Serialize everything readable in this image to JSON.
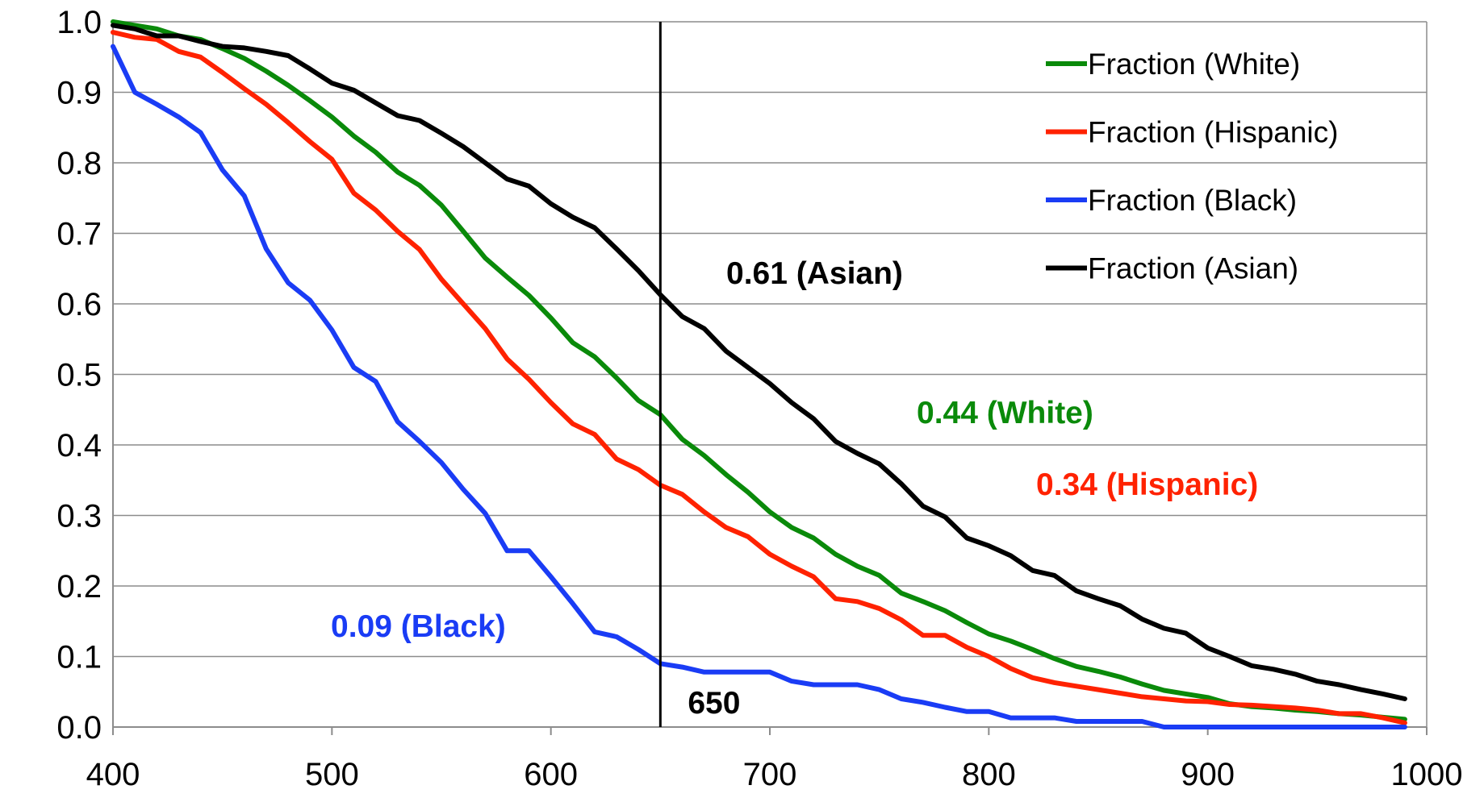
{
  "chart_data": {
    "type": "line",
    "x": [
      400,
      410,
      420,
      430,
      440,
      450,
      460,
      470,
      480,
      490,
      500,
      510,
      520,
      530,
      540,
      550,
      560,
      570,
      580,
      590,
      600,
      610,
      620,
      630,
      640,
      650,
      660,
      670,
      680,
      690,
      700,
      710,
      720,
      730,
      740,
      750,
      760,
      770,
      780,
      790,
      800,
      810,
      820,
      830,
      840,
      850,
      860,
      870,
      880,
      890,
      900,
      910,
      920,
      930,
      940,
      950,
      960,
      970,
      980,
      990
    ],
    "xlim": [
      400,
      1000
    ],
    "ylim": [
      0,
      1
    ],
    "x_ticks": [
      "400",
      "500",
      "600",
      "700",
      "800",
      "900",
      "1000"
    ],
    "y_ticks": [
      "0.0",
      "0.1",
      "0.2",
      "0.3",
      "0.4",
      "0.5",
      "0.6",
      "0.7",
      "0.8",
      "0.9",
      "1.0"
    ],
    "grid": "horizontal",
    "legend_position": "top-right",
    "series": [
      {
        "name": "Fraction (White)",
        "color": "#0a8a0a",
        "values": [
          1.0,
          0.995,
          0.99,
          0.98,
          0.975,
          0.962,
          0.948,
          0.93,
          0.91,
          0.888,
          0.865,
          0.838,
          0.815,
          0.787,
          0.768,
          0.74,
          0.703,
          0.665,
          0.638,
          0.612,
          0.58,
          0.545,
          0.525,
          0.495,
          0.463,
          0.443,
          0.408,
          0.385,
          0.358,
          0.333,
          0.305,
          0.283,
          0.268,
          0.245,
          0.228,
          0.215,
          0.19,
          0.178,
          0.165,
          0.148,
          0.132,
          0.122,
          0.11,
          0.097,
          0.086,
          0.079,
          0.071,
          0.061,
          0.052,
          0.047,
          0.042,
          0.033,
          0.029,
          0.027,
          0.024,
          0.022,
          0.019,
          0.017,
          0.014,
          0.011
        ]
      },
      {
        "name": "Fraction (Hispanic)",
        "color": "#ff2200",
        "values": [
          0.985,
          0.978,
          0.975,
          0.958,
          0.95,
          0.928,
          0.905,
          0.883,
          0.857,
          0.83,
          0.805,
          0.757,
          0.733,
          0.703,
          0.677,
          0.635,
          0.6,
          0.565,
          0.522,
          0.493,
          0.46,
          0.43,
          0.415,
          0.38,
          0.365,
          0.343,
          0.33,
          0.305,
          0.283,
          0.27,
          0.245,
          0.228,
          0.213,
          0.182,
          0.178,
          0.168,
          0.152,
          0.13,
          0.13,
          0.113,
          0.1,
          0.083,
          0.07,
          0.063,
          0.058,
          0.053,
          0.048,
          0.043,
          0.04,
          0.037,
          0.036,
          0.032,
          0.031,
          0.029,
          0.027,
          0.024,
          0.019,
          0.019,
          0.013,
          0.006
        ]
      },
      {
        "name": "Fraction (Black)",
        "color": "#1a3cf5",
        "values": [
          0.965,
          0.9,
          0.883,
          0.865,
          0.843,
          0.79,
          0.753,
          0.678,
          0.63,
          0.605,
          0.563,
          0.51,
          0.49,
          0.433,
          0.405,
          0.375,
          0.337,
          0.303,
          0.25,
          0.25,
          0.213,
          0.175,
          0.135,
          0.128,
          0.11,
          0.09,
          0.085,
          0.078,
          0.078,
          0.078,
          0.078,
          0.065,
          0.06,
          0.06,
          0.06,
          0.053,
          0.04,
          0.035,
          0.028,
          0.022,
          0.022,
          0.013,
          0.013,
          0.013,
          0.008,
          0.008,
          0.008,
          0.008,
          0.0,
          0.0,
          0.0,
          0.0,
          0.0,
          0.0,
          0.0,
          0.0,
          0.0,
          0.0,
          0.0,
          0.0
        ]
      },
      {
        "name": "Fraction (Asian)",
        "color": "#000000",
        "values": [
          0.995,
          0.99,
          0.98,
          0.98,
          0.972,
          0.965,
          0.963,
          0.958,
          0.952,
          0.933,
          0.913,
          0.903,
          0.885,
          0.867,
          0.86,
          0.842,
          0.823,
          0.8,
          0.777,
          0.767,
          0.742,
          0.723,
          0.708,
          0.678,
          0.647,
          0.613,
          0.582,
          0.565,
          0.533,
          0.51,
          0.487,
          0.46,
          0.437,
          0.405,
          0.388,
          0.373,
          0.345,
          0.313,
          0.298,
          0.268,
          0.257,
          0.243,
          0.222,
          0.215,
          0.193,
          0.182,
          0.172,
          0.153,
          0.14,
          0.133,
          0.112,
          0.1,
          0.087,
          0.082,
          0.075,
          0.065,
          0.06,
          0.053,
          0.047,
          0.04
        ]
      }
    ],
    "vline": {
      "x": 650,
      "label": "650"
    },
    "annotations": [
      {
        "text": "0.61 (Asian)",
        "color": "#000000",
        "x": 650,
        "y": 0.61
      },
      {
        "text": "0.44 (White)",
        "color": "#0a8a0a",
        "x": 650,
        "y": 0.44
      },
      {
        "text": "0.34 (Hispanic)",
        "color": "#ff2200",
        "x": 650,
        "y": 0.34
      },
      {
        "text": "0.09 (Black)",
        "color": "#1a3cf5",
        "x": 650,
        "y": 0.09
      }
    ]
  }
}
